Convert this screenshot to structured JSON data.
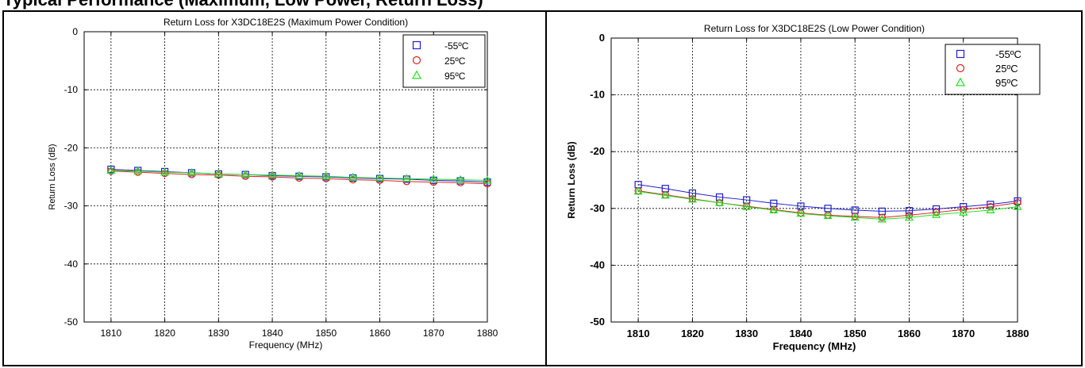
{
  "page": {
    "heading": "Typical Performance (Maximum, Low Power, Return Loss)"
  },
  "chart_data": [
    {
      "type": "line",
      "title": "Return Loss for X3DC18E2S (Maximum Power Condition)",
      "xlabel": "Frequency (MHz)",
      "ylabel": "Return Loss (dB)",
      "xlim": [
        1805,
        1880
      ],
      "ylim": [
        -50,
        0
      ],
      "xticks": [
        1810,
        1820,
        1830,
        1840,
        1850,
        1860,
        1870,
        1880
      ],
      "yticks": [
        0,
        -10,
        -20,
        -30,
        -40,
        -50
      ],
      "grid": true,
      "legend_position": "top-right",
      "x": [
        1810,
        1815,
        1820,
        1825,
        1830,
        1835,
        1840,
        1845,
        1850,
        1855,
        1860,
        1865,
        1870,
        1875,
        1880
      ],
      "series": [
        {
          "name": "-55ºC",
          "color": "#1f1fd0",
          "marker": "square",
          "values": [
            -23.7,
            -23.9,
            -24.1,
            -24.3,
            -24.5,
            -24.6,
            -24.8,
            -24.9,
            -25.0,
            -25.2,
            -25.3,
            -25.4,
            -25.6,
            -25.7,
            -25.9
          ]
        },
        {
          "name": "25ºC",
          "color": "#e01f1f",
          "marker": "circle",
          "values": [
            -24.0,
            -24.2,
            -24.4,
            -24.6,
            -24.7,
            -24.9,
            -25.0,
            -25.2,
            -25.3,
            -25.5,
            -25.6,
            -25.8,
            -25.9,
            -26.0,
            -26.2
          ]
        },
        {
          "name": "95ºC",
          "color": "#22e022",
          "marker": "triangle",
          "values": [
            -23.9,
            -24.0,
            -24.2,
            -24.3,
            -24.5,
            -24.6,
            -24.7,
            -24.8,
            -24.9,
            -25.1,
            -25.2,
            -25.3,
            -25.4,
            -25.5,
            -25.6
          ]
        }
      ]
    },
    {
      "type": "line",
      "title": "Return Loss for X3DC18E2S (Low Power Condition)",
      "xlabel": "Frequency (MHz)",
      "ylabel": "Return Loss (dB)",
      "xlim": [
        1805,
        1880
      ],
      "ylim": [
        -50,
        0
      ],
      "xticks": [
        1810,
        1820,
        1830,
        1840,
        1850,
        1860,
        1870,
        1880
      ],
      "yticks": [
        0,
        -10,
        -20,
        -30,
        -40,
        -50
      ],
      "grid": true,
      "legend_position": "top-right",
      "x": [
        1810,
        1815,
        1820,
        1825,
        1830,
        1835,
        1840,
        1845,
        1850,
        1855,
        1860,
        1865,
        1870,
        1875,
        1880
      ],
      "series": [
        {
          "name": "-55ºC",
          "color": "#1f1fd0",
          "marker": "square",
          "values": [
            -25.8,
            -26.5,
            -27.3,
            -28.0,
            -28.5,
            -29.1,
            -29.6,
            -30.0,
            -30.3,
            -30.5,
            -30.4,
            -30.1,
            -29.7,
            -29.3,
            -28.7
          ]
        },
        {
          "name": "25ºC",
          "color": "#e01f1f",
          "marker": "circle",
          "values": [
            -26.9,
            -27.6,
            -28.3,
            -29.0,
            -29.6,
            -30.2,
            -30.8,
            -31.2,
            -31.4,
            -31.6,
            -31.2,
            -30.7,
            -30.2,
            -29.7,
            -29.0
          ]
        },
        {
          "name": "95ºC",
          "color": "#22e022",
          "marker": "triangle",
          "values": [
            -27.0,
            -27.7,
            -28.4,
            -29.0,
            -29.7,
            -30.3,
            -30.9,
            -31.3,
            -31.6,
            -31.9,
            -31.6,
            -31.1,
            -30.7,
            -30.3,
            -29.7
          ]
        }
      ]
    }
  ]
}
